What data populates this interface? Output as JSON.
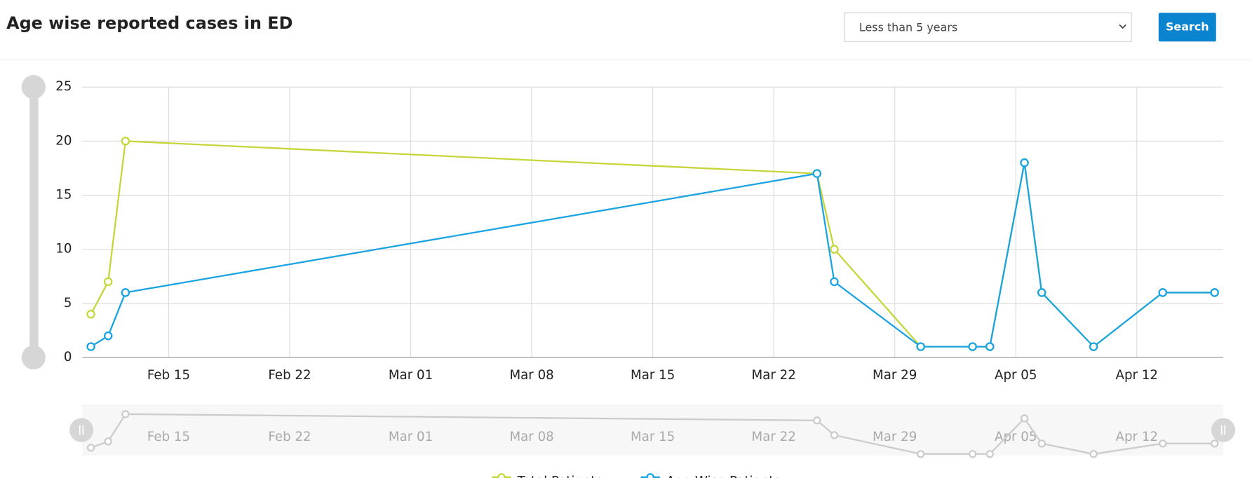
{
  "header": {
    "title": "Age wise reported cases in ED",
    "select": "Less than 5 years",
    "button": "Search"
  },
  "chart_data": {
    "type": "line",
    "x": [
      "Feb 10",
      "Feb 11",
      "Feb 12",
      "Mar 24",
      "Mar 25",
      "Mar 30",
      "Apr 02",
      "Apr 03",
      "Apr 05",
      "Apr 06",
      "Apr 09",
      "Apr 13",
      "Apr 16"
    ],
    "series": [
      {
        "name": "Total Patients",
        "color": "#c6d63a",
        "values": [
          4,
          7,
          20,
          17,
          10,
          1,
          1,
          1,
          18,
          6,
          1,
          6,
          6
        ]
      },
      {
        "name": "Age Wise Patients",
        "color": "#1aa3e3",
        "values": [
          1,
          2,
          6,
          17,
          7,
          1,
          1,
          1,
          18,
          6,
          1,
          6,
          6
        ]
      }
    ],
    "xlim": [
      "Feb 10",
      "Apr 17"
    ],
    "xticks": [
      "Feb 15",
      "Feb 22",
      "Mar 01",
      "Mar 08",
      "Mar 15",
      "Mar 22",
      "Mar 29",
      "Apr 05",
      "Apr 12"
    ],
    "ylim": [
      0,
      25
    ],
    "yticks": [
      0,
      5,
      10,
      15,
      20,
      25
    ],
    "grid": true
  }
}
